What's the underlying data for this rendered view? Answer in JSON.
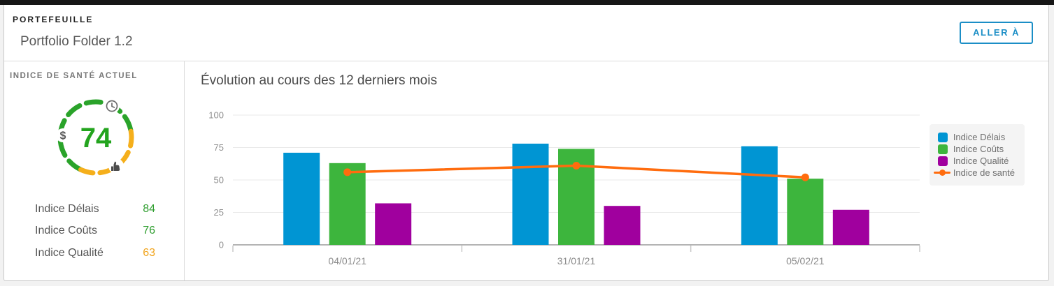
{
  "header": {
    "eyebrow": "PORTEFEUILLE",
    "title": "Portfolio Folder 1.2",
    "go_to_label": "ALLER À"
  },
  "health_panel": {
    "title": "INDICE DE SANTÉ ACTUEL",
    "score": "74",
    "dollar_symbol": "$",
    "gauge": {
      "ring_green": "#2aa32a",
      "ring_yellow": "#f5af1b",
      "score_color": "#23a41e",
      "icons": [
        "clock-icon",
        "dollar-icon",
        "thumbs-up-icon"
      ]
    },
    "indices": [
      {
        "label": "Indice Délais",
        "value": "84",
        "color": "#2f9e2f"
      },
      {
        "label": "Indice Coûts",
        "value": "76",
        "color": "#2f9e2f"
      },
      {
        "label": "Indice Qualité",
        "value": "63",
        "color": "#f1a41c"
      }
    ]
  },
  "chart": {
    "title": "Évolution au cours des 12 derniers mois"
  },
  "chart_data": {
    "type": "bar",
    "categories": [
      "04/01/21",
      "31/01/21",
      "05/02/21"
    ],
    "series": [
      {
        "name": "Indice Délais",
        "type": "bar",
        "color": "#0095d3",
        "values": [
          71,
          78,
          76
        ]
      },
      {
        "name": "Indice Coûts",
        "type": "bar",
        "color": "#3db53d",
        "values": [
          63,
          74,
          51
        ]
      },
      {
        "name": "Indice Qualité",
        "type": "bar",
        "color": "#a0009e",
        "values": [
          32,
          30,
          27
        ]
      },
      {
        "name": "Indice de santé",
        "type": "line",
        "color": "#ff6c0e",
        "values": [
          56,
          61,
          52
        ]
      }
    ],
    "title": "Évolution au cours des 12 derniers mois",
    "xlabel": "",
    "ylabel": "",
    "ylim": [
      0,
      100
    ],
    "yticks": [
      0,
      25,
      50,
      75,
      100
    ],
    "grid": true,
    "legend_position": "right"
  },
  "colors": {
    "accent_blue": "#1b8ec6",
    "axis": "#b4b4b4",
    "gridline": "#e9e9e9"
  }
}
